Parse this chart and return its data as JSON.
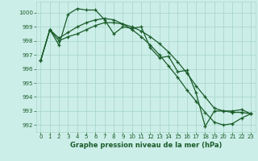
{
  "bg_color": "#cceee8",
  "grid_color": "#aad8cc",
  "line_color": "#1a5c2a",
  "xlabel": "Graphe pression niveau de la mer (hPa)",
  "ylim": [
    991.5,
    1000.8
  ],
  "yticks": [
    992,
    993,
    994,
    995,
    996,
    997,
    998,
    999,
    1000
  ],
  "xticks": [
    0,
    1,
    2,
    3,
    4,
    5,
    6,
    7,
    8,
    9,
    10,
    11,
    12,
    13,
    14,
    15,
    16,
    17,
    18,
    19,
    20,
    21,
    22,
    23
  ],
  "series": [
    [
      996.6,
      998.8,
      997.7,
      999.9,
      1000.3,
      1000.2,
      1000.2,
      999.5,
      998.5,
      999.0,
      998.9,
      999.0,
      997.5,
      996.8,
      996.9,
      995.8,
      995.9,
      994.3,
      991.9,
      993.0,
      993.0,
      993.0,
      993.1,
      992.8
    ],
    [
      996.6,
      998.8,
      998.0,
      998.3,
      998.5,
      998.8,
      999.1,
      999.3,
      999.3,
      999.2,
      999.0,
      998.7,
      998.3,
      997.8,
      997.2,
      996.5,
      995.7,
      994.8,
      994.0,
      993.2,
      993.0,
      992.9,
      992.9,
      992.8
    ],
    [
      996.6,
      998.8,
      998.2,
      998.6,
      999.0,
      999.3,
      999.5,
      999.6,
      999.5,
      999.2,
      998.8,
      998.3,
      997.7,
      997.0,
      996.2,
      995.4,
      994.5,
      993.7,
      992.9,
      992.2,
      992.0,
      992.1,
      992.5,
      992.8
    ]
  ]
}
